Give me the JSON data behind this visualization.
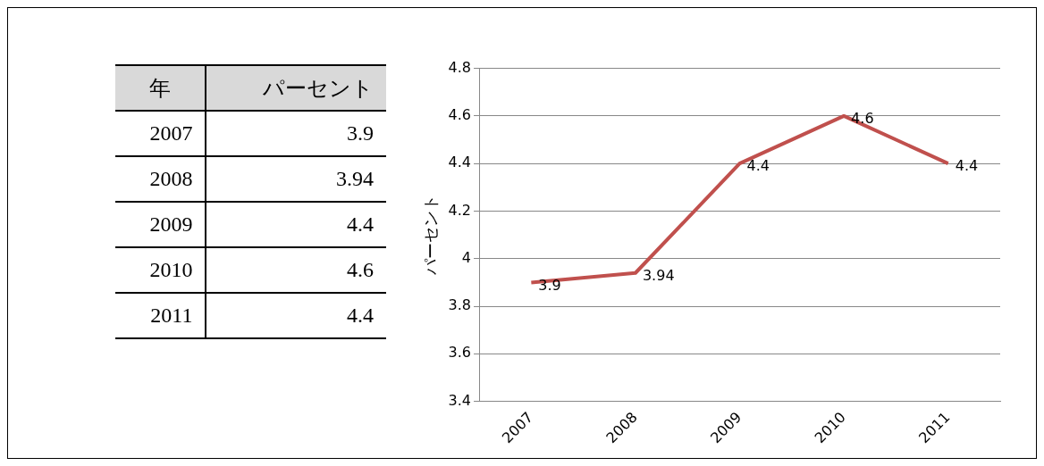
{
  "chart_data": {
    "type": "line",
    "ylabel": "パーセント",
    "annotations": [
      "年"
    ],
    "categories": [
      "2007",
      "2008",
      "2009",
      "2010",
      "2011"
    ],
    "series": [
      {
        "color": "#c0504d",
        "values": [
          3.9,
          3.94,
          4.4,
          4.6,
          4.4
        ],
        "value_labels": [
          "3.9",
          "3.94",
          "4.4",
          "4.6",
          "4.4"
        ]
      }
    ],
    "ylim": [
      3.4,
      4.8
    ],
    "yticks": [
      3.4,
      3.6,
      3.8,
      4,
      4.2,
      4.4,
      4.6,
      4.8
    ],
    "grid": "y",
    "legend": false,
    "marker": "none",
    "line_style": "solid"
  }
}
